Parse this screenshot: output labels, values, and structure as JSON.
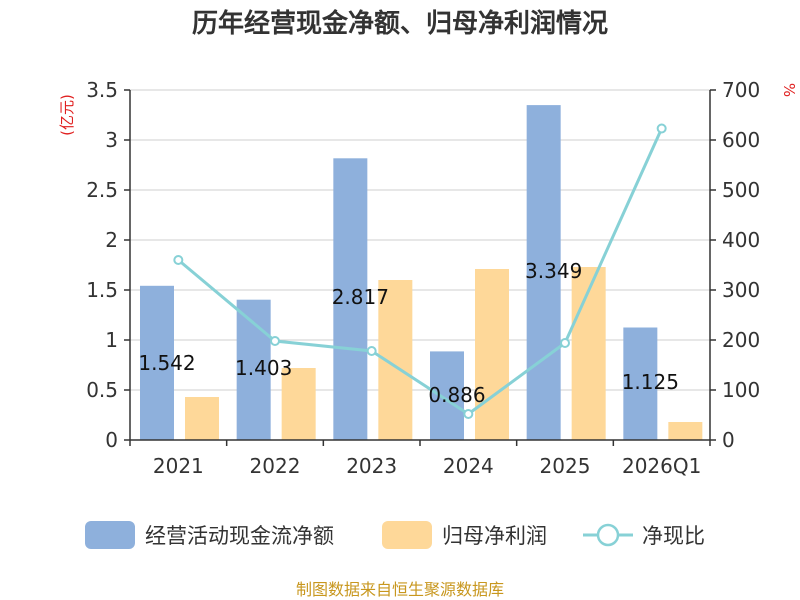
{
  "chart_data": {
    "type": "bar",
    "title": "历年经营现金净额、归母净利润情况",
    "categories": [
      "2021",
      "2022",
      "2023",
      "2024",
      "2025",
      "2026Q1"
    ],
    "series": [
      {
        "name": "经营活动现金流净额",
        "type": "bar",
        "axis": "left",
        "color": "#8eb0dc",
        "values": [
          1.542,
          1.403,
          2.817,
          0.886,
          3.349,
          1.125
        ],
        "labels": [
          "1.542",
          "1.403",
          "2.817",
          "0.886",
          "3.349",
          "1.125"
        ]
      },
      {
        "name": "归母净利润",
        "type": "bar",
        "axis": "left",
        "color": "#fed899",
        "values": [
          0.43,
          0.72,
          1.6,
          1.71,
          1.73,
          0.18
        ]
      },
      {
        "name": "净现比",
        "type": "line",
        "axis": "right",
        "color": "#87d1d6",
        "values": [
          360,
          198,
          178,
          52,
          194,
          623
        ]
      }
    ],
    "left_axis": {
      "unit": "(亿元)",
      "ylim": [
        0,
        3.5
      ],
      "ticks": [
        "0",
        "0.5",
        "1",
        "1.5",
        "2",
        "2.5",
        "3",
        "3.5"
      ]
    },
    "right_axis": {
      "unit": "%",
      "ylim": [
        0,
        700
      ],
      "ticks": [
        "0",
        "100",
        "200",
        "300",
        "400",
        "500",
        "600",
        "700"
      ]
    },
    "grid": true,
    "legend_position": "bottom",
    "source": "制图数据来自恒生聚源数据库"
  }
}
